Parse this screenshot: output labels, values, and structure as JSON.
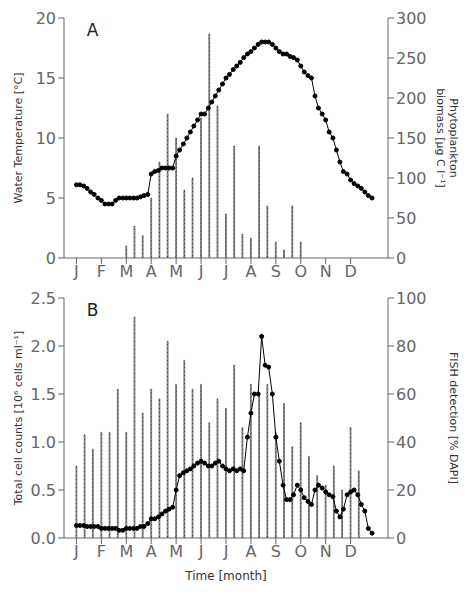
{
  "chart_data": [
    {
      "type": "line",
      "title": "A",
      "ylabel": "Water Temperature [°C]",
      "y2label": "Phytoplankton\nbiomass [μg C l⁻¹]",
      "xlim": [
        -0.5,
        12.5
      ],
      "xticks": [
        {
          "value": 0,
          "label": "J"
        },
        {
          "value": 1,
          "label": "F"
        },
        {
          "value": 2,
          "label": "M"
        },
        {
          "value": 3,
          "label": "A"
        },
        {
          "value": 4,
          "label": "M"
        },
        {
          "value": 5,
          "label": "J"
        },
        {
          "value": 6,
          "label": "J"
        },
        {
          "value": 7,
          "label": "A"
        },
        {
          "value": 8,
          "label": "S"
        },
        {
          "value": 9,
          "label": "O"
        },
        {
          "value": 10,
          "label": "N"
        },
        {
          "value": 11,
          "label": "D"
        }
      ],
      "ylim": [
        0,
        20
      ],
      "yticks": [
        0,
        5,
        10,
        15,
        20
      ],
      "y2lim": [
        0,
        300
      ],
      "y2ticks": [
        0,
        50,
        100,
        150,
        200,
        250,
        300
      ],
      "grid": false,
      "series": [
        {
          "type": "bar",
          "axis": "y2",
          "color": "black",
          "x": [
            2.0,
            2.33,
            2.66,
            3.0,
            3.33,
            3.66,
            4.0,
            4.33,
            4.66,
            5.0,
            5.33,
            5.66,
            6.0,
            6.33,
            6.66,
            7.0,
            7.33,
            7.66,
            8.0,
            8.33,
            8.66,
            9.0,
            9.33
          ],
          "values": [
            15,
            40,
            28,
            75,
            120,
            180,
            150,
            85,
            100,
            175,
            280,
            190,
            55,
            140,
            30,
            25,
            140,
            65,
            20,
            10,
            65,
            20,
            0
          ]
        },
        {
          "type": "line",
          "color": "black",
          "marker": "circle",
          "x": [
            0.0,
            0.14,
            0.29,
            0.43,
            0.57,
            0.71,
            0.86,
            1.0,
            1.14,
            1.29,
            1.43,
            1.57,
            1.71,
            1.86,
            2.0,
            2.14,
            2.29,
            2.43,
            2.57,
            2.71,
            2.86,
            3.0,
            3.14,
            3.29,
            3.43,
            3.57,
            3.71,
            3.86,
            4.0,
            4.14,
            4.29,
            4.43,
            4.57,
            4.71,
            4.86,
            5.0,
            5.14,
            5.29,
            5.43,
            5.57,
            5.71,
            5.86,
            6.0,
            6.14,
            6.29,
            6.43,
            6.57,
            6.71,
            6.86,
            7.0,
            7.14,
            7.29,
            7.43,
            7.57,
            7.71,
            7.86,
            8.0,
            8.14,
            8.29,
            8.43,
            8.57,
            8.71,
            8.86,
            9.0,
            9.14,
            9.29,
            9.43,
            9.57,
            9.71,
            9.86,
            10.0,
            10.14,
            10.29,
            10.43,
            10.57,
            10.71,
            10.86,
            11.0,
            11.14,
            11.29,
            11.43,
            11.57,
            11.71,
            11.86
          ],
          "values": [
            6.1,
            6.1,
            6.0,
            5.8,
            5.5,
            5.3,
            5.0,
            4.8,
            4.5,
            4.5,
            4.5,
            4.8,
            5.0,
            5.0,
            5.0,
            5.0,
            5.0,
            5.0,
            5.1,
            5.2,
            5.3,
            7.0,
            7.2,
            7.3,
            7.5,
            7.5,
            7.5,
            7.5,
            8.5,
            9.0,
            9.5,
            10.0,
            10.5,
            11.0,
            11.5,
            12.0,
            12.0,
            12.5,
            13.0,
            13.5,
            14.0,
            14.5,
            15.0,
            15.3,
            15.7,
            16.0,
            16.3,
            16.7,
            17.0,
            17.2,
            17.5,
            17.8,
            18.0,
            18.0,
            18.0,
            17.8,
            17.5,
            17.2,
            17.0,
            17.0,
            16.8,
            16.7,
            16.5,
            16.0,
            15.5,
            15.2,
            15.0,
            13.5,
            12.5,
            12.0,
            11.5,
            10.5,
            10.0,
            9.0,
            8.0,
            7.2,
            7.0,
            6.5,
            6.2,
            6.0,
            5.8,
            5.5,
            5.2,
            5.0
          ]
        }
      ]
    },
    {
      "type": "line",
      "title": "B",
      "xlabel": "Time [month]",
      "ylabel": "Total cell counts [10⁶ cells ml⁻¹]",
      "y2label": "FISH detection [% DAPI]",
      "xlim": [
        -0.5,
        12.5
      ],
      "xticks": [
        {
          "value": 0,
          "label": "J"
        },
        {
          "value": 1,
          "label": "F"
        },
        {
          "value": 2,
          "label": "M"
        },
        {
          "value": 3,
          "label": "A"
        },
        {
          "value": 4,
          "label": "M"
        },
        {
          "value": 5,
          "label": "J"
        },
        {
          "value": 6,
          "label": "J"
        },
        {
          "value": 7,
          "label": "A"
        },
        {
          "value": 8,
          "label": "S"
        },
        {
          "value": 9,
          "label": "O"
        },
        {
          "value": 10,
          "label": "N"
        },
        {
          "value": 11,
          "label": "D"
        }
      ],
      "ylim": [
        0,
        2.5
      ],
      "yticks": [
        {
          "value": 0.0,
          "label": "0.0"
        },
        0.5,
        {
          "value": 1.0,
          "label": "1.0"
        },
        1.5,
        {
          "value": 2.0,
          "label": "2.0"
        },
        2.5
      ],
      "y2lim": [
        0,
        100
      ],
      "y2ticks": [
        0,
        20,
        40,
        60,
        80,
        100
      ],
      "grid": false,
      "series": [
        {
          "type": "bar",
          "axis": "y2",
          "color": "black",
          "x": [
            0.0,
            0.33,
            0.66,
            1.0,
            1.33,
            1.66,
            2.0,
            2.33,
            2.66,
            3.0,
            3.33,
            3.66,
            4.0,
            4.33,
            4.66,
            5.0,
            5.33,
            5.66,
            6.0,
            6.33,
            6.66,
            7.0,
            7.33,
            7.66,
            8.0,
            8.33,
            8.66,
            9.0,
            9.33,
            9.66,
            10.0,
            10.33,
            10.66,
            11.0,
            11.33
          ],
          "values": [
            30,
            43,
            37,
            44,
            44,
            62,
            44,
            92,
            52,
            62,
            58,
            82,
            64,
            74,
            62,
            64,
            48,
            58,
            54,
            72,
            46,
            64,
            60,
            64,
            44,
            56,
            38,
            48,
            34,
            26,
            22,
            30,
            20,
            46,
            28
          ]
        },
        {
          "type": "line",
          "color": "black",
          "marker": "circle",
          "x": [
            0.0,
            0.14,
            0.29,
            0.43,
            0.57,
            0.71,
            0.86,
            1.0,
            1.14,
            1.29,
            1.43,
            1.57,
            1.71,
            1.86,
            2.0,
            2.14,
            2.29,
            2.43,
            2.57,
            2.71,
            2.86,
            3.0,
            3.14,
            3.29,
            3.43,
            3.57,
            3.71,
            3.86,
            4.0,
            4.14,
            4.29,
            4.43,
            4.57,
            4.71,
            4.86,
            5.0,
            5.14,
            5.29,
            5.43,
            5.57,
            5.71,
            5.86,
            6.0,
            6.14,
            6.29,
            6.43,
            6.57,
            6.71,
            6.86,
            7.0,
            7.14,
            7.29,
            7.43,
            7.57,
            7.71,
            7.86,
            8.0,
            8.14,
            8.29,
            8.43,
            8.57,
            8.71,
            8.86,
            9.0,
            9.14,
            9.29,
            9.43,
            9.57,
            9.71,
            9.86,
            10.0,
            10.14,
            10.29,
            10.43,
            10.57,
            10.71,
            10.86,
            11.0,
            11.14,
            11.29,
            11.43,
            11.57,
            11.71,
            11.86
          ],
          "values": [
            0.13,
            0.13,
            0.13,
            0.12,
            0.12,
            0.12,
            0.12,
            0.1,
            0.1,
            0.1,
            0.1,
            0.1,
            0.08,
            0.08,
            0.1,
            0.1,
            0.1,
            0.1,
            0.12,
            0.12,
            0.15,
            0.2,
            0.2,
            0.22,
            0.25,
            0.28,
            0.3,
            0.32,
            0.5,
            0.65,
            0.68,
            0.7,
            0.72,
            0.75,
            0.78,
            0.8,
            0.78,
            0.75,
            0.75,
            0.78,
            0.8,
            0.75,
            0.72,
            0.7,
            0.72,
            0.7,
            0.72,
            0.7,
            1.05,
            1.3,
            1.5,
            1.5,
            2.1,
            1.8,
            1.78,
            1.5,
            1.05,
            0.8,
            0.55,
            0.4,
            0.4,
            0.45,
            0.55,
            0.5,
            0.42,
            0.38,
            0.35,
            0.5,
            0.55,
            0.52,
            0.48,
            0.45,
            0.43,
            0.28,
            0.22,
            0.3,
            0.45,
            0.48,
            0.5,
            0.45,
            0.35,
            0.28,
            0.1,
            0.05
          ]
        }
      ]
    }
  ]
}
